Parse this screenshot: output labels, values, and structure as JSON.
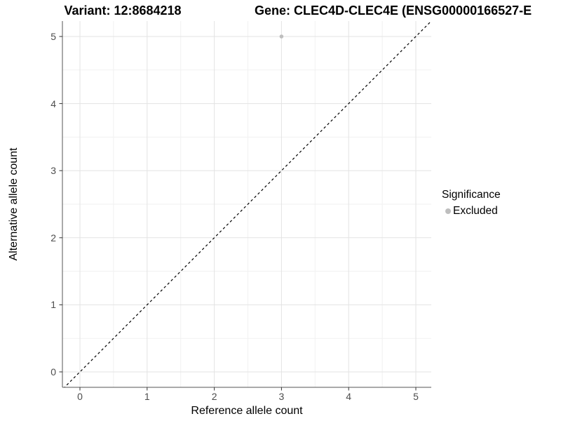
{
  "chart_data": {
    "type": "scatter",
    "title_left": "Variant: 12:8684218",
    "title_right": "Gene: CLEC4D-CLEC4E (ENSG00000166527-E",
    "xlabel": "Reference allele count",
    "ylabel": "Alternative allele count",
    "x_ticks": [
      0,
      1,
      2,
      3,
      4,
      5
    ],
    "y_ticks": [
      0,
      1,
      2,
      3,
      4,
      5
    ],
    "xlim": [
      -0.26,
      5.23
    ],
    "ylim": [
      -0.23,
      5.23
    ],
    "grid": "major and minor gridlines, light gray on white panel",
    "points": [
      {
        "x": 3,
        "y": 5,
        "significance": "Excluded",
        "color": "#bebebe"
      }
    ],
    "annotations": [
      {
        "type": "identity-line",
        "style": "dashed",
        "color": "#000000",
        "from": [
          -0.3,
          -0.3
        ],
        "to": [
          5.3,
          5.3
        ]
      }
    ],
    "legend": {
      "position": "right",
      "title": "Significance",
      "entries": [
        {
          "label": "Excluded",
          "color": "#bebebe"
        }
      ]
    },
    "colors": {
      "panel_background": "#ffffff",
      "gridline_major": "#e3e3e3",
      "gridline_minor": "#f1f1f1",
      "axis_line": "#555555",
      "tick_label": "#4d4d4d",
      "excluded_point": "#bebebe"
    }
  }
}
